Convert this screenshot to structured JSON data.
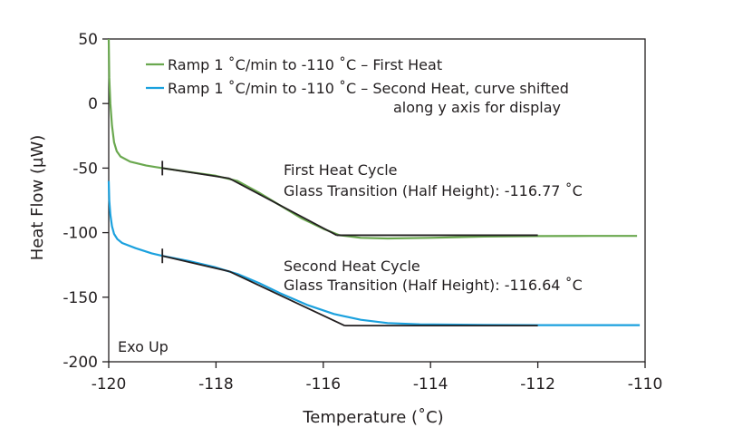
{
  "chart_data": {
    "type": "line",
    "xlabel": "Temperature (˚C)",
    "ylabel": "Heat Flow (µW)",
    "xlim": [
      -120,
      -110
    ],
    "ylim": [
      -200,
      50
    ],
    "x_ticks": [
      "-120",
      "-118",
      "-116",
      "-114",
      "-112",
      "-110"
    ],
    "y_ticks": [
      "50",
      "0",
      "-50",
      "-100",
      "-150",
      "-200"
    ],
    "grid": false,
    "legend_position": "top",
    "colors": {
      "first": "#6aa84f",
      "second": "#1ba1de",
      "tangent": "#231f20",
      "axis": "#231f20"
    },
    "series": [
      {
        "name": "Ramp 1 ˚C/min to -110 ˚C – First Heat",
        "color": "#6aa84f",
        "points": [
          [
            -120,
            50
          ],
          [
            -119.99,
            20
          ],
          [
            -119.97,
            0
          ],
          [
            -119.94,
            -17
          ],
          [
            -119.9,
            -30
          ],
          [
            -119.85,
            -37
          ],
          [
            -119.78,
            -41
          ],
          [
            -119.6,
            -45
          ],
          [
            -119.3,
            -48
          ],
          [
            -119,
            -50
          ],
          [
            -118.5,
            -53
          ],
          [
            -118,
            -56
          ],
          [
            -117.6,
            -60
          ],
          [
            -117.2,
            -69
          ],
          [
            -116.8,
            -79
          ],
          [
            -116.4,
            -89
          ],
          [
            -116.0,
            -97
          ],
          [
            -115.7,
            -102
          ],
          [
            -115.3,
            -104
          ],
          [
            -114.8,
            -104.5
          ],
          [
            -114.0,
            -104
          ],
          [
            -113.0,
            -103
          ],
          [
            -112.0,
            -102.7
          ],
          [
            -111.0,
            -102.5
          ],
          [
            -110.15,
            -102.5
          ]
        ]
      },
      {
        "name": "Ramp 1 ˚C/min to -110 ˚C – Second Heat, curve shifted\nalong y axis for display",
        "color": "#1ba1de",
        "points": [
          [
            -120,
            -60
          ],
          [
            -119.99,
            -75
          ],
          [
            -119.97,
            -86
          ],
          [
            -119.94,
            -95
          ],
          [
            -119.9,
            -101
          ],
          [
            -119.84,
            -105
          ],
          [
            -119.75,
            -108
          ],
          [
            -119.5,
            -112
          ],
          [
            -119.2,
            -116
          ],
          [
            -119,
            -118
          ],
          [
            -118.5,
            -122
          ],
          [
            -118,
            -127
          ],
          [
            -117.6,
            -132
          ],
          [
            -117.2,
            -139
          ],
          [
            -116.8,
            -147
          ],
          [
            -116.3,
            -156
          ],
          [
            -115.8,
            -163
          ],
          [
            -115.3,
            -167.5
          ],
          [
            -114.8,
            -170
          ],
          [
            -114.2,
            -171
          ],
          [
            -113.0,
            -171.5
          ],
          [
            -112.0,
            -171.6
          ],
          [
            -111.0,
            -171.6
          ],
          [
            -110.1,
            -171.6
          ]
        ]
      }
    ],
    "tangents": [
      {
        "series": "first",
        "segments": [
          [
            [
              -119.0,
              -50
            ],
            [
              -117.75,
              -58
            ]
          ],
          [
            [
              -117.75,
              -58
            ],
            [
              -115.75,
              -102
            ]
          ],
          [
            [
              -115.75,
              -102
            ],
            [
              -112.0,
              -102
            ]
          ]
        ],
        "marker": [
          -119.0,
          -50
        ]
      },
      {
        "series": "second",
        "segments": [
          [
            [
              -119.0,
              -118
            ],
            [
              -117.75,
              -130
            ]
          ],
          [
            [
              -117.75,
              -130
            ],
            [
              -115.6,
              -172
            ]
          ],
          [
            [
              -115.6,
              -172
            ],
            [
              -112.0,
              -172
            ]
          ]
        ],
        "marker": [
          -119.0,
          -118
        ]
      }
    ],
    "annotations": [
      {
        "id": "first-title",
        "text": "First Heat Cycle"
      },
      {
        "id": "first-tg",
        "text": "Glass Transition (Half Height): -116.77 ˚C"
      },
      {
        "id": "second-title",
        "text": "Second Heat Cycle"
      },
      {
        "id": "second-tg",
        "text": "Glass Transition (Half Height): -116.64 ˚C"
      },
      {
        "id": "exo",
        "text": "Exo Up"
      }
    ],
    "legend": [
      {
        "label": "Ramp 1 ˚C/min to -110 ˚C – First Heat",
        "color": "#6aa84f"
      },
      {
        "label": "Ramp 1 ˚C/min to -110 ˚C – Second Heat, curve shifted",
        "label2": "along y axis for display",
        "color": "#1ba1de"
      }
    ]
  }
}
